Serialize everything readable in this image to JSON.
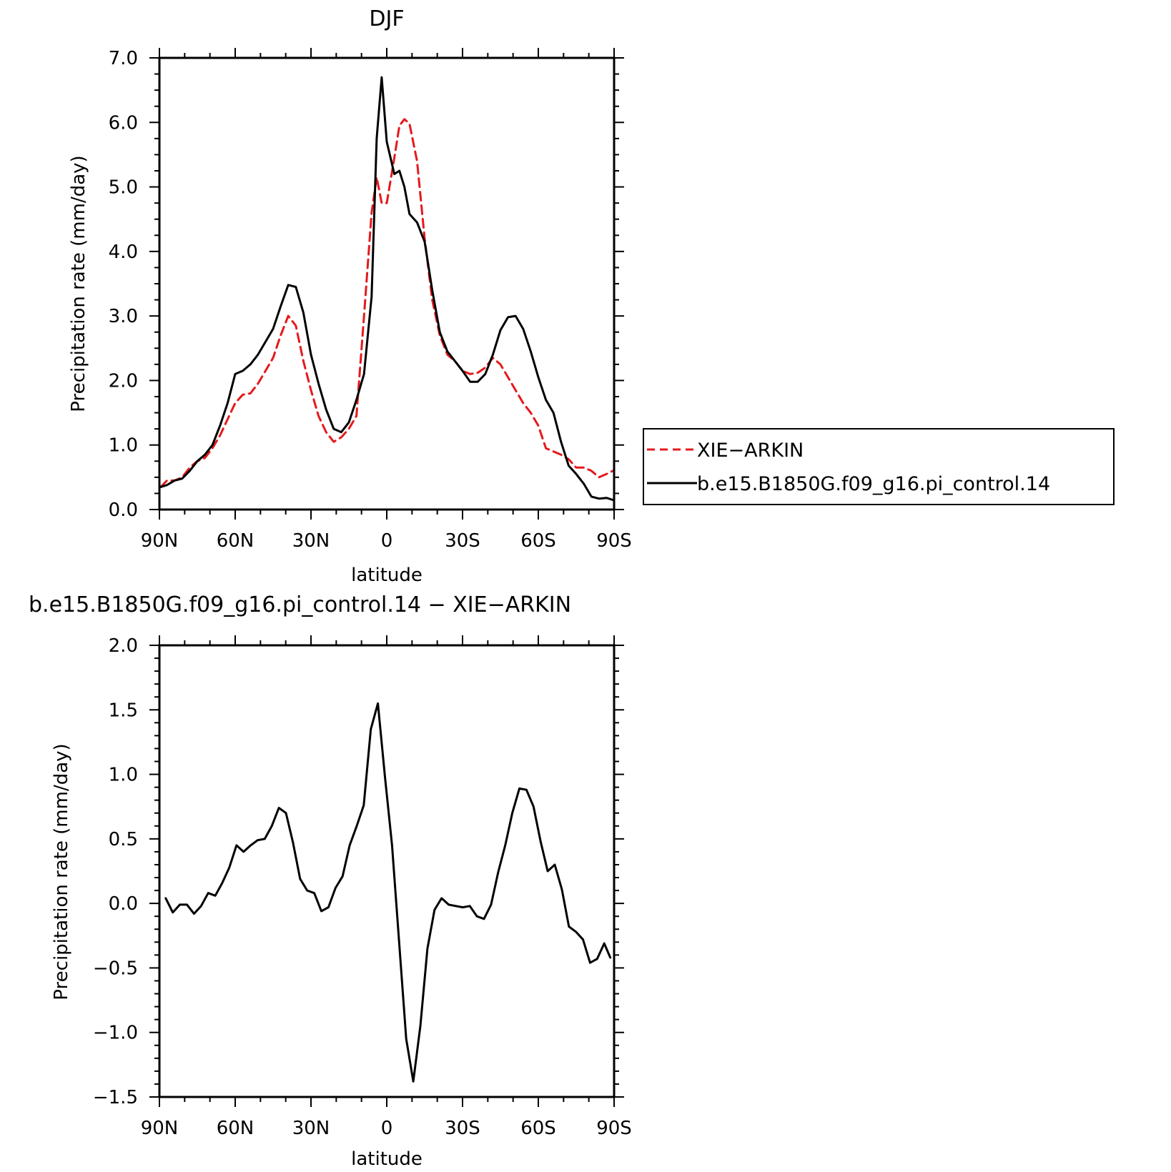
{
  "chart_data": [
    {
      "type": "line",
      "title": "DJF",
      "xlabel": "latitude",
      "ylabel": "Precipitation rate (mm/day)",
      "xlim": [
        -90,
        90
      ],
      "ylim": [
        0,
        7
      ],
      "x_ticks": [
        -90,
        -60,
        -30,
        0,
        30,
        60,
        90
      ],
      "x_tick_labels": [
        "90N",
        "60N",
        "30N",
        "0",
        "30S",
        "60S",
        "90S"
      ],
      "y_ticks": [
        0,
        1,
        2,
        3,
        4,
        5,
        6,
        7
      ],
      "y_tick_labels": [
        "0.0",
        "1.0",
        "2.0",
        "3.0",
        "4.0",
        "5.0",
        "6.0",
        "7.0"
      ],
      "legend": {
        "placement": "right"
      },
      "series": [
        {
          "name": "XIE−ARKIN",
          "color": "#e41a1c",
          "dash": true,
          "x": [
            -89.5,
            -87,
            -84,
            -81,
            -78,
            -75,
            -72,
            -69,
            -66,
            -63,
            -60,
            -57,
            -54,
            -51,
            -48,
            -45,
            -42,
            -39,
            -36,
            -33,
            -30,
            -27,
            -24,
            -21,
            -18,
            -15,
            -12,
            -9,
            -6,
            -4,
            -2,
            0,
            3,
            5,
            7,
            9,
            12,
            15,
            18,
            21,
            24,
            27,
            30,
            33,
            36,
            39,
            42,
            45,
            48,
            51,
            54,
            57,
            60,
            63,
            66,
            69,
            72,
            75,
            78,
            81,
            84,
            87,
            89.5
          ],
          "y": [
            0.35,
            0.45,
            0.45,
            0.5,
            0.65,
            0.75,
            0.8,
            0.95,
            1.15,
            1.4,
            1.65,
            1.78,
            1.8,
            1.95,
            2.15,
            2.35,
            2.7,
            3.0,
            2.85,
            2.3,
            1.85,
            1.45,
            1.2,
            1.05,
            1.12,
            1.25,
            1.45,
            3.0,
            4.6,
            5.15,
            4.75,
            4.75,
            5.45,
            5.95,
            6.05,
            5.98,
            5.4,
            4.2,
            3.25,
            2.7,
            2.4,
            2.3,
            2.15,
            2.1,
            2.12,
            2.2,
            2.35,
            2.25,
            2.05,
            1.85,
            1.65,
            1.5,
            1.3,
            0.95,
            0.9,
            0.85,
            0.78,
            0.65,
            0.65,
            0.6,
            0.5,
            0.55,
            0.6
          ]
        },
        {
          "name": "b.e15.B1850G.f09_g16.pi_control.14",
          "color": "#000000",
          "dash": false,
          "x": [
            -89.5,
            -87,
            -84,
            -81,
            -78,
            -75,
            -72,
            -69,
            -66,
            -63,
            -60,
            -57,
            -54,
            -51,
            -48,
            -45,
            -42,
            -39,
            -36,
            -33,
            -30,
            -27,
            -24,
            -21,
            -18,
            -15,
            -12,
            -9,
            -6,
            -4,
            -2,
            0,
            3,
            5,
            7,
            9,
            12,
            15,
            18,
            21,
            24,
            27,
            30,
            33,
            36,
            39,
            42,
            45,
            48,
            51,
            54,
            57,
            60,
            63,
            66,
            69,
            72,
            75,
            78,
            81,
            84,
            87,
            89.5
          ],
          "y": [
            0.35,
            0.38,
            0.45,
            0.48,
            0.6,
            0.75,
            0.85,
            1.0,
            1.3,
            1.65,
            2.1,
            2.15,
            2.25,
            2.4,
            2.6,
            2.8,
            3.15,
            3.48,
            3.45,
            3.05,
            2.4,
            1.95,
            1.55,
            1.25,
            1.2,
            1.35,
            1.7,
            2.1,
            3.3,
            5.75,
            6.7,
            5.7,
            5.2,
            5.25,
            5.0,
            4.58,
            4.45,
            4.15,
            3.4,
            2.75,
            2.45,
            2.3,
            2.15,
            1.98,
            1.98,
            2.1,
            2.4,
            2.78,
            2.98,
            3.0,
            2.8,
            2.45,
            2.05,
            1.7,
            1.5,
            1.05,
            0.68,
            0.55,
            0.4,
            0.2,
            0.17,
            0.18,
            0.15
          ]
        }
      ]
    },
    {
      "type": "line",
      "title": "b.e15.B1850G.f09_g16.pi_control.14 − XIE−ARKIN",
      "xlabel": "latitude",
      "ylabel": "Precipitation rate (mm/day)",
      "xlim": [
        -90,
        90
      ],
      "ylim": [
        -1.5,
        2.0
      ],
      "x_ticks": [
        -90,
        -60,
        -30,
        0,
        30,
        60,
        90
      ],
      "x_tick_labels": [
        "90N",
        "60N",
        "30N",
        "0",
        "30S",
        "60S",
        "90S"
      ],
      "y_ticks": [
        -1.5,
        -1.0,
        -0.5,
        0.0,
        0.5,
        1.0,
        1.5,
        2.0
      ],
      "y_tick_labels": [
        "−1.5",
        "−1.0",
        "−0.5",
        "0.0",
        "0.5",
        "1.0",
        "1.5",
        "2.0"
      ],
      "series": [
        {
          "color": "#000000",
          "dash": false,
          "x": [
            -87.5,
            -84.7,
            -81.9,
            -79.1,
            -76.3,
            -73.5,
            -70.7,
            -67.9,
            -65.1,
            -62.3,
            -59.5,
            -56.7,
            -53.9,
            -51.1,
            -48.3,
            -45.5,
            -42.7,
            -39.9,
            -37.1,
            -34.3,
            -31.5,
            -28.7,
            -25.9,
            -23.1,
            -20.3,
            -17.5,
            -14.7,
            -11.9,
            -9.1,
            -6.3,
            -3.5,
            -0.7,
            2.1,
            4.9,
            7.7,
            10.5,
            13.3,
            16.1,
            18.9,
            21.7,
            24.5,
            27.3,
            30.1,
            32.9,
            35.7,
            38.5,
            41.3,
            44.1,
            46.9,
            49.7,
            52.5,
            55.3,
            58.1,
            60.9,
            63.7,
            66.5,
            69.3,
            72.1,
            74.9,
            77.7,
            80.5,
            83.3,
            86.1,
            88.5
          ],
          "y": [
            0.04,
            -0.07,
            -0.01,
            -0.01,
            -0.08,
            -0.02,
            0.08,
            0.06,
            0.16,
            0.28,
            0.45,
            0.4,
            0.45,
            0.49,
            0.5,
            0.6,
            0.74,
            0.7,
            0.47,
            0.19,
            0.1,
            0.08,
            -0.06,
            -0.03,
            0.12,
            0.21,
            0.45,
            0.6,
            0.76,
            1.35,
            1.55,
            0.98,
            0.45,
            -0.3,
            -1.05,
            -1.38,
            -0.95,
            -0.35,
            -0.05,
            0.04,
            -0.01,
            -0.02,
            -0.03,
            -0.02,
            -0.1,
            -0.12,
            -0.01,
            0.24,
            0.45,
            0.7,
            0.89,
            0.88,
            0.75,
            0.48,
            0.25,
            0.3,
            0.11,
            -0.18,
            -0.22,
            -0.28,
            -0.46,
            -0.43,
            -0.31,
            -0.42
          ]
        }
      ]
    }
  ]
}
